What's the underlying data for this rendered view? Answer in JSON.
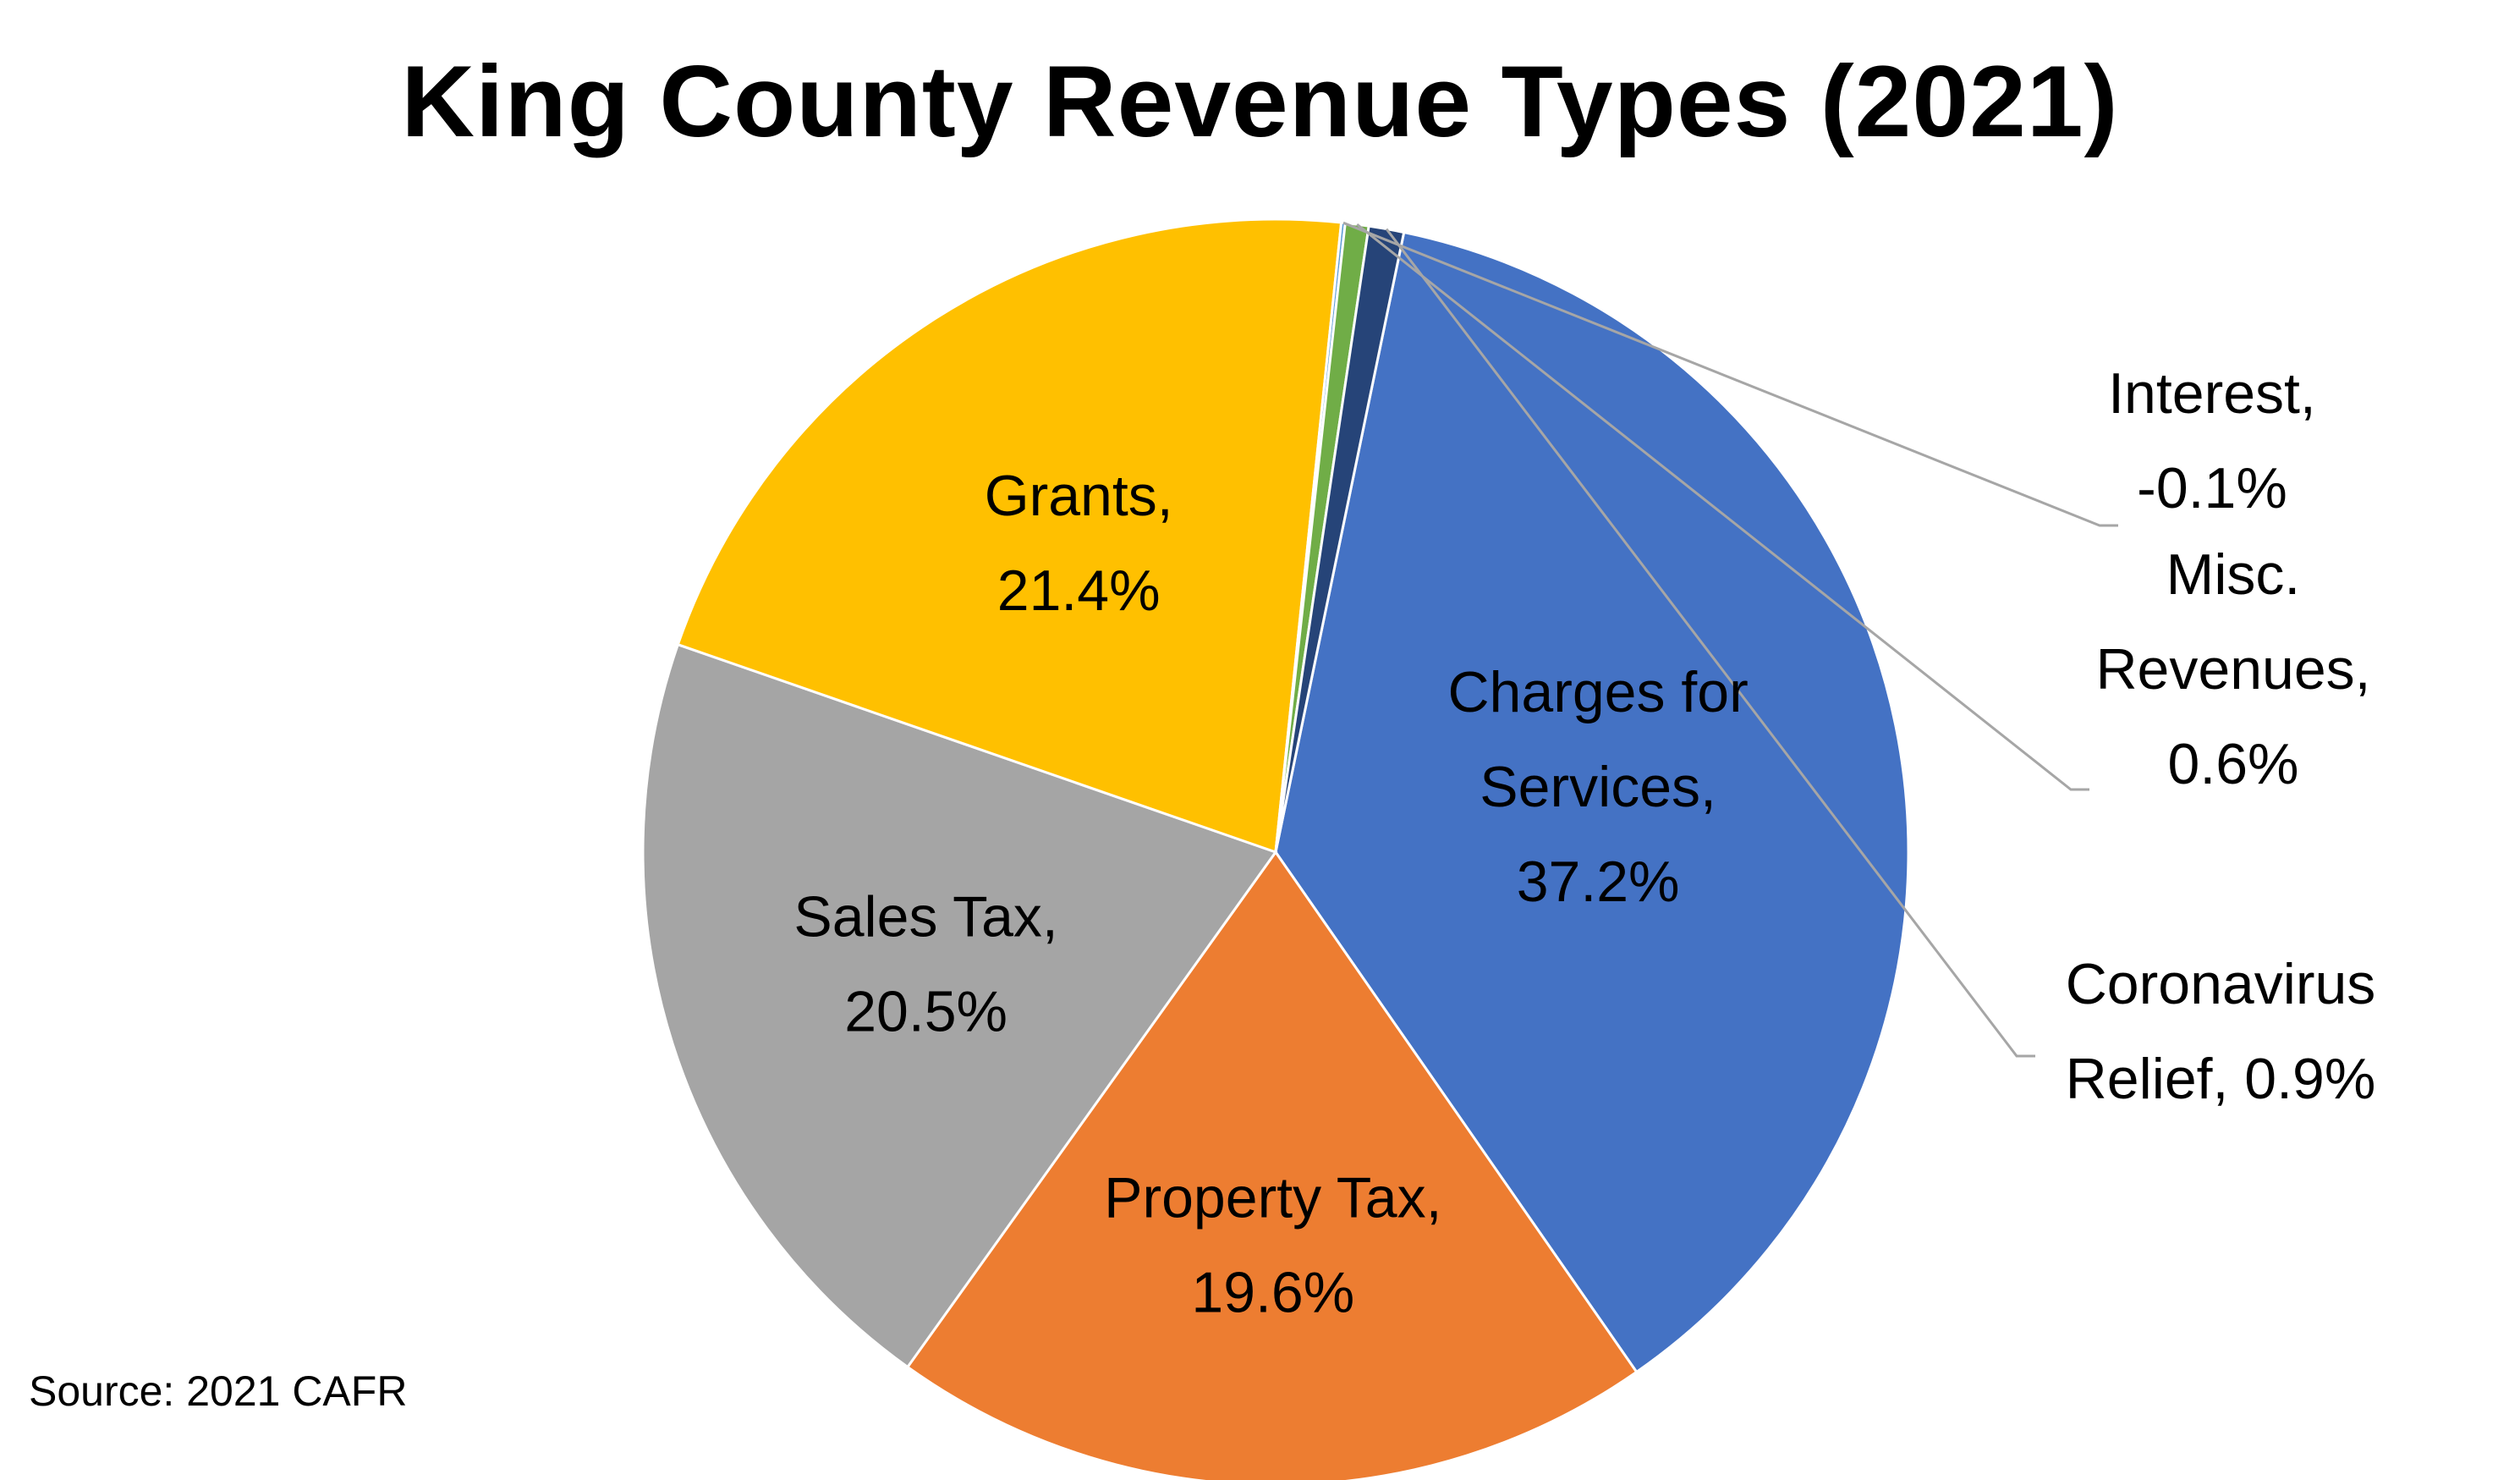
{
  "chart_data": {
    "type": "pie",
    "title": "King County Revenue Types (2021)",
    "source": "Source: 2021 CAFR",
    "slices": [
      {
        "category": "Charges for Services",
        "value": 37.2,
        "color": "#4472C4",
        "label_lines": [
          "Charges for",
          "Services,",
          "37.2%"
        ]
      },
      {
        "category": "Property Tax",
        "value": 19.6,
        "color": "#ED7D31",
        "label_lines": [
          "Property Tax,",
          "19.6%"
        ]
      },
      {
        "category": "Sales Tax",
        "value": 20.5,
        "color": "#A5A5A5",
        "label_lines": [
          "Sales Tax,",
          "20.5%"
        ]
      },
      {
        "category": "Grants",
        "value": 21.4,
        "color": "#FFC000",
        "label_lines": [
          "Grants,",
          "21.4%"
        ]
      },
      {
        "category": "Interest",
        "value": -0.1,
        "color": "#5B9BD5",
        "label_lines": [
          "Interest,",
          "-0.1%"
        ]
      },
      {
        "category": "Misc. Revenues",
        "value": 0.6,
        "color": "#70AD47",
        "label_lines": [
          "Misc.",
          "Revenues,",
          "0.6%"
        ]
      },
      {
        "category": "Coronavirus Relief",
        "value": 0.9,
        "color": "#264478",
        "label_lines": [
          "Coronavirus",
          "Relief, 0.9%"
        ]
      }
    ],
    "legend": "none",
    "labels": "data labels with category name and percentage, leader lines for small slices"
  }
}
